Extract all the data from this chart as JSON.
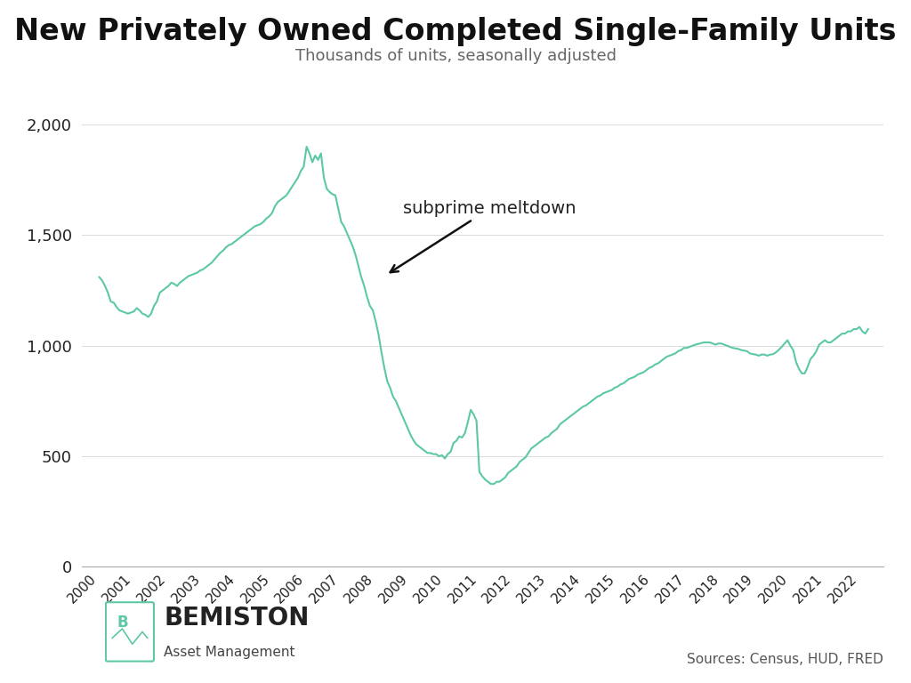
{
  "title": "New Privately Owned Completed Single-Family Units",
  "subtitle": "Thousands of units, seasonally adjusted",
  "source_text": "Sources: Census, HUD, FRED",
  "watermark_line1": "BEMISTON",
  "watermark_line2": "Asset Management",
  "line_color": "#5CC8A8",
  "bg_color": "#ffffff",
  "grid_color": "#dddddd",
  "title_fontsize": 24,
  "subtitle_fontsize": 13,
  "annotation_text": "subprime meltdown",
  "ylim": [
    0,
    2100
  ],
  "yticks": [
    0,
    500,
    1000,
    1500,
    2000
  ],
  "dates": [
    2000.0,
    2000.083,
    2000.167,
    2000.25,
    2000.333,
    2000.417,
    2000.5,
    2000.583,
    2000.667,
    2000.75,
    2000.833,
    2000.917,
    2001.0,
    2001.083,
    2001.167,
    2001.25,
    2001.333,
    2001.417,
    2001.5,
    2001.583,
    2001.667,
    2001.75,
    2001.833,
    2001.917,
    2002.0,
    2002.083,
    2002.167,
    2002.25,
    2002.333,
    2002.417,
    2002.5,
    2002.583,
    2002.667,
    2002.75,
    2002.833,
    2002.917,
    2003.0,
    2003.083,
    2003.167,
    2003.25,
    2003.333,
    2003.417,
    2003.5,
    2003.583,
    2003.667,
    2003.75,
    2003.833,
    2003.917,
    2004.0,
    2004.083,
    2004.167,
    2004.25,
    2004.333,
    2004.417,
    2004.5,
    2004.583,
    2004.667,
    2004.75,
    2004.833,
    2004.917,
    2005.0,
    2005.083,
    2005.167,
    2005.25,
    2005.333,
    2005.417,
    2005.5,
    2005.583,
    2005.667,
    2005.75,
    2005.833,
    2005.917,
    2006.0,
    2006.083,
    2006.167,
    2006.25,
    2006.333,
    2006.417,
    2006.5,
    2006.583,
    2006.667,
    2006.75,
    2006.833,
    2006.917,
    2007.0,
    2007.083,
    2007.167,
    2007.25,
    2007.333,
    2007.417,
    2007.5,
    2007.583,
    2007.667,
    2007.75,
    2007.833,
    2007.917,
    2008.0,
    2008.083,
    2008.167,
    2008.25,
    2008.333,
    2008.417,
    2008.5,
    2008.583,
    2008.667,
    2008.75,
    2008.833,
    2008.917,
    2009.0,
    2009.083,
    2009.167,
    2009.25,
    2009.333,
    2009.417,
    2009.5,
    2009.583,
    2009.667,
    2009.75,
    2009.833,
    2009.917,
    2010.0,
    2010.083,
    2010.167,
    2010.25,
    2010.333,
    2010.417,
    2010.5,
    2010.583,
    2010.667,
    2010.75,
    2010.833,
    2010.917,
    2011.0,
    2011.083,
    2011.167,
    2011.25,
    2011.333,
    2011.417,
    2011.5,
    2011.583,
    2011.667,
    2011.75,
    2011.833,
    2011.917,
    2012.0,
    2012.083,
    2012.167,
    2012.25,
    2012.333,
    2012.417,
    2012.5,
    2012.583,
    2012.667,
    2012.75,
    2012.833,
    2012.917,
    2013.0,
    2013.083,
    2013.167,
    2013.25,
    2013.333,
    2013.417,
    2013.5,
    2013.583,
    2013.667,
    2013.75,
    2013.833,
    2013.917,
    2014.0,
    2014.083,
    2014.167,
    2014.25,
    2014.333,
    2014.417,
    2014.5,
    2014.583,
    2014.667,
    2014.75,
    2014.833,
    2014.917,
    2015.0,
    2015.083,
    2015.167,
    2015.25,
    2015.333,
    2015.417,
    2015.5,
    2015.583,
    2015.667,
    2015.75,
    2015.833,
    2015.917,
    2016.0,
    2016.083,
    2016.167,
    2016.25,
    2016.333,
    2016.417,
    2016.5,
    2016.583,
    2016.667,
    2016.75,
    2016.833,
    2016.917,
    2017.0,
    2017.083,
    2017.167,
    2017.25,
    2017.333,
    2017.417,
    2017.5,
    2017.583,
    2017.667,
    2017.75,
    2017.833,
    2017.917,
    2018.0,
    2018.083,
    2018.167,
    2018.25,
    2018.333,
    2018.417,
    2018.5,
    2018.583,
    2018.667,
    2018.75,
    2018.833,
    2018.917,
    2019.0,
    2019.083,
    2019.167,
    2019.25,
    2019.333,
    2019.417,
    2019.5,
    2019.583,
    2019.667,
    2019.75,
    2019.833,
    2019.917,
    2020.0,
    2020.083,
    2020.167,
    2020.25,
    2020.333,
    2020.417,
    2020.5,
    2020.583,
    2020.667,
    2020.75,
    2020.833,
    2020.917,
    2021.0,
    2021.083,
    2021.167,
    2021.25,
    2021.333,
    2021.417,
    2021.5,
    2021.583,
    2021.667,
    2021.75,
    2021.833,
    2021.917,
    2022.0,
    2022.083,
    2022.167,
    2022.25
  ],
  "values": [
    1310,
    1295,
    1270,
    1240,
    1200,
    1195,
    1175,
    1160,
    1155,
    1150,
    1145,
    1150,
    1155,
    1170,
    1160,
    1145,
    1140,
    1130,
    1145,
    1180,
    1200,
    1240,
    1250,
    1260,
    1270,
    1285,
    1280,
    1270,
    1285,
    1295,
    1305,
    1315,
    1320,
    1325,
    1330,
    1340,
    1345,
    1355,
    1365,
    1375,
    1390,
    1405,
    1420,
    1430,
    1445,
    1455,
    1460,
    1470,
    1480,
    1490,
    1500,
    1510,
    1520,
    1530,
    1540,
    1545,
    1550,
    1560,
    1575,
    1585,
    1600,
    1630,
    1650,
    1660,
    1670,
    1680,
    1700,
    1720,
    1740,
    1760,
    1790,
    1810,
    1900,
    1870,
    1830,
    1860,
    1840,
    1870,
    1760,
    1710,
    1695,
    1685,
    1680,
    1620,
    1560,
    1540,
    1510,
    1480,
    1450,
    1410,
    1360,
    1310,
    1270,
    1220,
    1180,
    1160,
    1110,
    1050,
    970,
    900,
    840,
    810,
    770,
    750,
    720,
    690,
    660,
    630,
    600,
    575,
    555,
    545,
    535,
    525,
    515,
    515,
    510,
    510,
    500,
    505,
    490,
    510,
    520,
    560,
    570,
    590,
    585,
    605,
    655,
    710,
    690,
    660,
    430,
    410,
    395,
    385,
    375,
    375,
    385,
    385,
    395,
    405,
    425,
    435,
    445,
    455,
    475,
    485,
    495,
    515,
    535,
    545,
    555,
    565,
    575,
    585,
    590,
    605,
    615,
    625,
    645,
    655,
    665,
    675,
    685,
    695,
    705,
    715,
    725,
    730,
    740,
    750,
    760,
    770,
    775,
    785,
    790,
    795,
    800,
    810,
    815,
    825,
    830,
    840,
    850,
    855,
    860,
    870,
    875,
    880,
    890,
    900,
    905,
    915,
    920,
    930,
    940,
    950,
    955,
    960,
    965,
    975,
    980,
    990,
    990,
    995,
    1000,
    1005,
    1008,
    1012,
    1015,
    1015,
    1015,
    1010,
    1005,
    1010,
    1010,
    1005,
    1000,
    995,
    990,
    988,
    985,
    980,
    978,
    975,
    965,
    962,
    960,
    955,
    960,
    960,
    955,
    960,
    962,
    970,
    982,
    995,
    1010,
    1025,
    1000,
    980,
    925,
    895,
    875,
    875,
    905,
    940,
    955,
    975,
    1005,
    1015,
    1025,
    1015,
    1015,
    1025,
    1035,
    1045,
    1055,
    1055,
    1065,
    1065,
    1075,
    1075,
    1085,
    1065,
    1055,
    1075
  ],
  "xtick_years": [
    2000,
    2001,
    2002,
    2003,
    2004,
    2005,
    2006,
    2007,
    2008,
    2009,
    2010,
    2011,
    2012,
    2013,
    2014,
    2015,
    2016,
    2017,
    2018,
    2019,
    2020,
    2021,
    2022
  ],
  "xlim": [
    1999.5,
    2022.7
  ]
}
